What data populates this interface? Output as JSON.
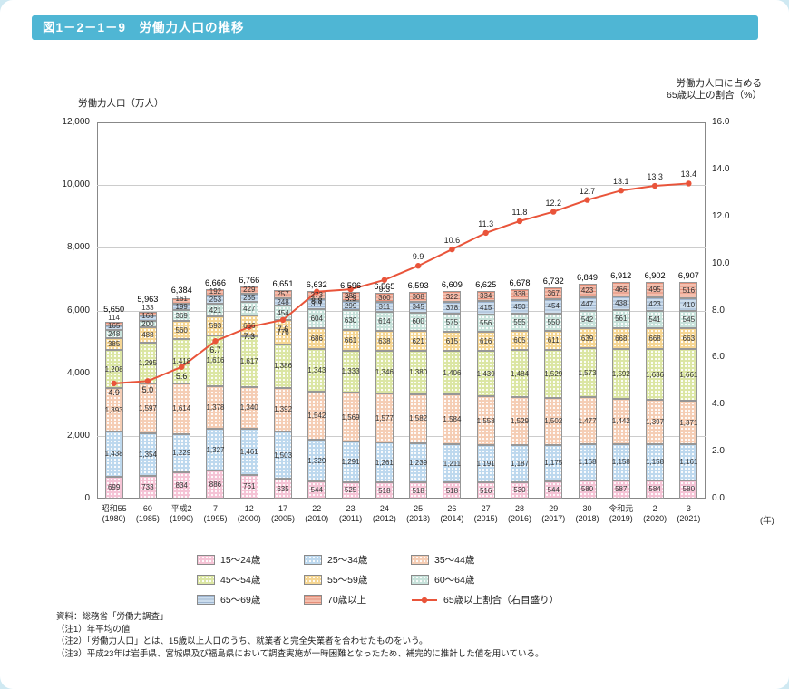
{
  "page": {
    "title": "図1－2－1－9　労働力人口の推移"
  },
  "axes": {
    "left_title": "労働力人口（万人）",
    "right_title_line1": "労働力人口に占める",
    "right_title_line2": "65歳以上の割合（%）",
    "left_ticks": [
      0,
      2000,
      4000,
      6000,
      8000,
      10000,
      12000
    ],
    "left_max": 12000,
    "right_ticks": [
      "0.0",
      "2.0",
      "4.0",
      "6.0",
      "8.0",
      "10.0",
      "12.0",
      "14.0",
      "16.0"
    ],
    "right_max": 16,
    "unit_label": "(年)"
  },
  "chart_data": {
    "type": "bar",
    "stacked": true,
    "title": "労働力人口の推移",
    "ylabel": "労働力人口（万人）",
    "y2label": "労働力人口に占める65歳以上の割合（%）",
    "ylim": [
      0,
      12000
    ],
    "y2lim": [
      0,
      16
    ],
    "categories": [
      [
        "昭和55",
        "(1980)"
      ],
      [
        "60",
        "(1985)"
      ],
      [
        "平成2",
        "(1990)"
      ],
      [
        "7",
        "(1995)"
      ],
      [
        "12",
        "(2000)"
      ],
      [
        "17",
        "(2005)"
      ],
      [
        "22",
        "(2010)"
      ],
      [
        "23",
        "(2011)"
      ],
      [
        "24",
        "(2012)"
      ],
      [
        "25",
        "(2013)"
      ],
      [
        "26",
        "(2014)"
      ],
      [
        "27",
        "(2015)"
      ],
      [
        "28",
        "(2016)"
      ],
      [
        "29",
        "(2017)"
      ],
      [
        "30",
        "(2018)"
      ],
      [
        "令和元",
        "(2019)"
      ],
      [
        "2",
        "(2020)"
      ],
      [
        "3",
        "(2021)"
      ]
    ],
    "series": [
      {
        "name": "15～24歳",
        "color": "#f5c3d5",
        "pattern": "dots",
        "values": [
          699,
          733,
          834,
          886,
          761,
          635,
          544,
          525,
          518,
          518,
          518,
          516,
          530,
          544,
          580,
          587,
          584,
          580
        ]
      },
      {
        "name": "25～34歳",
        "color": "#bdd8ee",
        "pattern": "dots",
        "values": [
          1438,
          1354,
          1229,
          1327,
          1461,
          1503,
          1329,
          1291,
          1261,
          1239,
          1211,
          1191,
          1187,
          1175,
          1168,
          1158,
          1158,
          1161
        ]
      },
      {
        "name": "35～44歳",
        "color": "#f5cdb4",
        "pattern": "dots",
        "values": [
          1393,
          1597,
          1614,
          1378,
          1340,
          1392,
          1542,
          1569,
          1577,
          1582,
          1584,
          1558,
          1529,
          1502,
          1477,
          1442,
          1397,
          1371
        ]
      },
      {
        "name": "45～54歳",
        "color": "#dbe6a3",
        "pattern": "dots",
        "values": [
          1208,
          1295,
          1418,
          1616,
          1617,
          1386,
          1343,
          1333,
          1346,
          1380,
          1406,
          1439,
          1484,
          1529,
          1573,
          1592,
          1636,
          1661
        ]
      },
      {
        "name": "55～59歳",
        "color": "#f5d592",
        "pattern": "dots",
        "values": [
          385,
          488,
          560,
          593,
          666,
          776,
          686,
          661,
          638,
          621,
          615,
          616,
          605,
          611,
          639,
          668,
          668,
          663
        ]
      },
      {
        "name": "60～64歳",
        "color": "#c7e2da",
        "pattern": "dots",
        "values": [
          248,
          200,
          369,
          421,
          427,
          454,
          604,
          630,
          614,
          600,
          575,
          556,
          555,
          550,
          542,
          561,
          541,
          545
        ]
      },
      {
        "name": "65～69歳",
        "color": "#ccdded",
        "pattern": "hstripe-blue",
        "values": [
          165,
          163,
          199,
          253,
          265,
          248,
          311,
          299,
          311,
          345,
          378,
          415,
          450,
          454,
          447,
          438,
          423,
          410
        ]
      },
      {
        "name": "70歳以上",
        "color": "#f4bfae",
        "pattern": "hstripe-red",
        "values": [
          114,
          133,
          161,
          192,
          229,
          257,
          273,
          288,
          300,
          308,
          322,
          334,
          338,
          367,
          423,
          466,
          495,
          516
        ]
      }
    ],
    "totals": [
      5650,
      5963,
      6384,
      6666,
      6766,
      6651,
      6632,
      6596,
      6565,
      6593,
      6609,
      6625,
      6678,
      6732,
      6849,
      6912,
      6902,
      6907
    ],
    "line": {
      "name": "65歳以上割合（右目盛り）",
      "color": "#e9543a",
      "values": [
        4.9,
        5.0,
        5.6,
        6.7,
        7.3,
        7.6,
        8.8,
        8.9,
        9.3,
        9.9,
        10.6,
        11.3,
        11.8,
        12.2,
        12.7,
        13.1,
        13.3,
        13.4
      ]
    }
  },
  "notes": [
    "資料：総務省「労働力調査」",
    "（注1）年平均の値",
    "（注2）「労働力人口」とは、15歳以上人口のうち、就業者と完全失業者を合わせたものをいう。",
    "（注3）平成23年は岩手県、宮城県及び福島県において調査実施が一時困難となったため、補完的に推計した値を用いている。"
  ]
}
